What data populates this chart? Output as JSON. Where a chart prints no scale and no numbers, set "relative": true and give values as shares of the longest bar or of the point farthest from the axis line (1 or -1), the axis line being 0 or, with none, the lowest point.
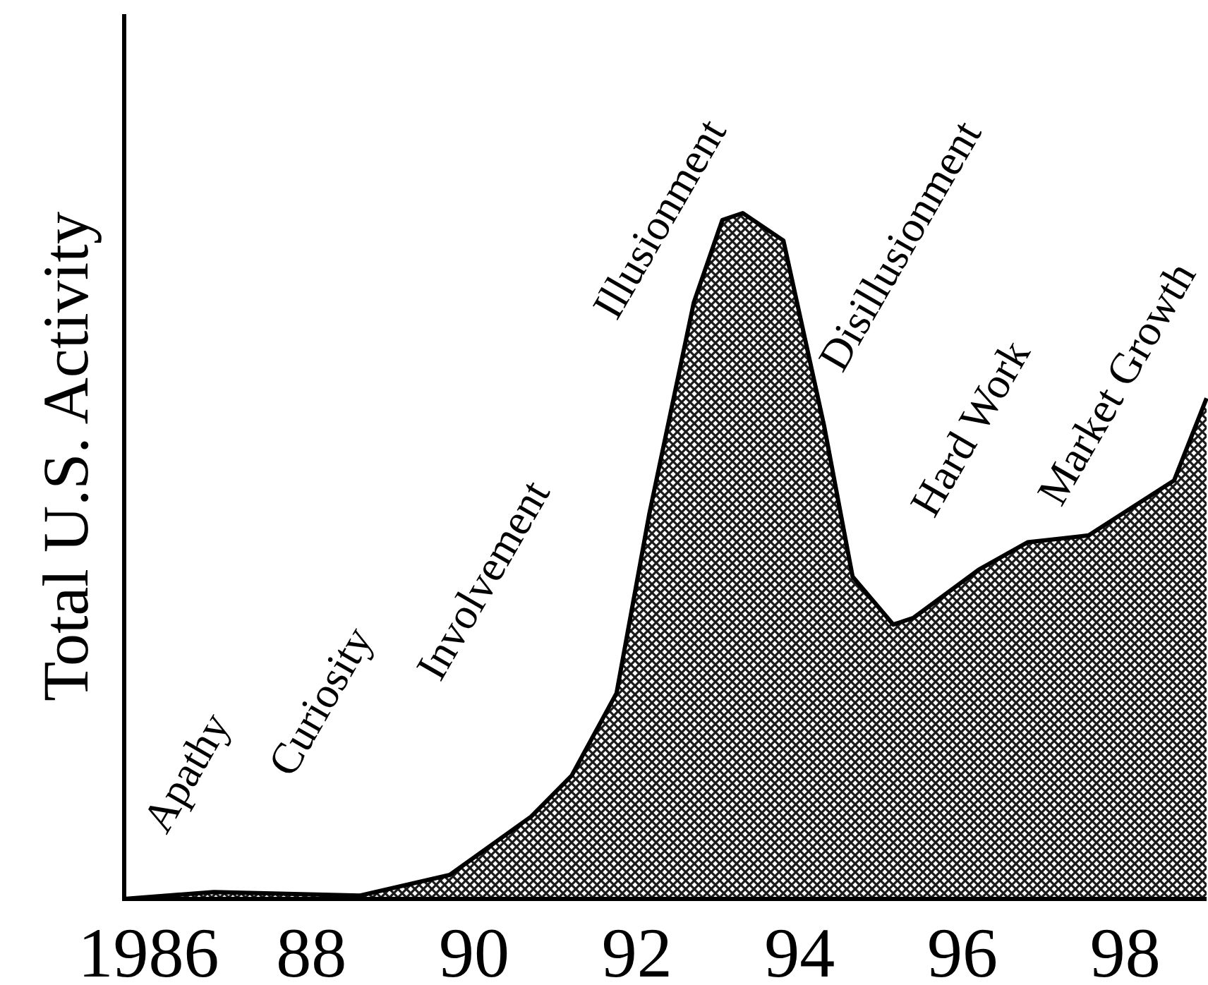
{
  "chart_data": {
    "type": "area",
    "relative": true,
    "ylabel": "Total U.S. Activity",
    "x": [
      1985.7,
      1986.8,
      1988.6,
      1989.7,
      1990.7,
      1991.2,
      1991.75,
      1992.15,
      1992.7,
      1993.05,
      1993.3,
      1993.8,
      1994.3,
      1994.65,
      1995.15,
      1995.4,
      1996.2,
      1996.8,
      1997.55,
      1998.6,
      1999.0
    ],
    "series": [
      {
        "color": "#1a1a1a",
        "values": [
          0,
          0.01,
          0.005,
          0.035,
          0.12,
          0.18,
          0.3,
          0.56,
          0.87,
          0.99,
          1,
          0.96,
          0.69,
          0.47,
          0.4,
          0.41,
          0.48,
          0.52,
          0.53,
          0.61,
          0.73
        ]
      }
    ],
    "xlim": [
      1985.7,
      1999.0
    ],
    "xticks": [
      {
        "value": 1986,
        "label": "1986"
      },
      {
        "value": 1988,
        "label": "88"
      },
      {
        "value": 1990,
        "label": "90"
      },
      {
        "value": 1992,
        "label": "92"
      },
      {
        "value": 1994,
        "label": "94"
      },
      {
        "value": 1996,
        "label": "96"
      },
      {
        "value": 1998,
        "label": "98"
      }
    ],
    "annotations": [
      "Apathy",
      "Curiosity",
      "Involvement",
      "Illusionment",
      "Disillusionment",
      "Hard Work",
      "Market Growth"
    ]
  }
}
